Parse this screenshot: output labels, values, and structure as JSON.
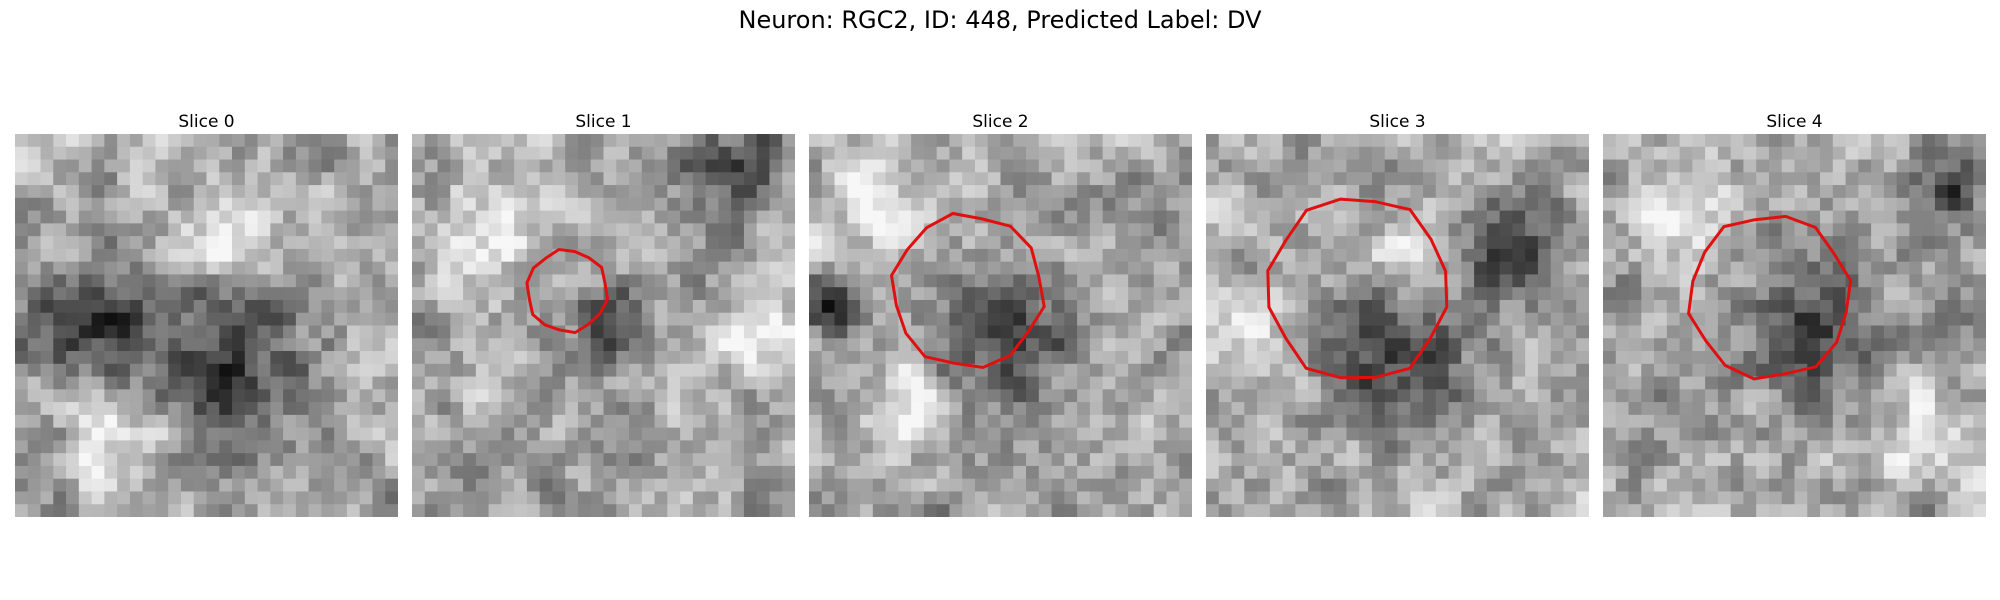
{
  "figure": {
    "title": "Neuron: RGC2, ID: 448, Predicted Label: DV"
  },
  "contour_color": "#e01010",
  "slices": [
    {
      "title": "Slice 0",
      "seed": 11,
      "dark_blobs": [
        [
          0.55,
          0.62,
          0.35
        ],
        [
          0.2,
          0.5,
          0.25
        ]
      ],
      "light_blobs": [
        [
          0.55,
          0.25,
          0.2
        ],
        [
          0.3,
          0.78,
          0.2
        ]
      ],
      "has_contour": false
    },
    {
      "title": "Slice 1",
      "seed": 23,
      "dark_blobs": [
        [
          0.52,
          0.5,
          0.14
        ],
        [
          0.85,
          0.1,
          0.2
        ]
      ],
      "light_blobs": [
        [
          0.2,
          0.25,
          0.25
        ],
        [
          0.9,
          0.5,
          0.18
        ]
      ],
      "has_contour": true
    },
    {
      "title": "Slice 2",
      "seed": 37,
      "dark_blobs": [
        [
          0.52,
          0.52,
          0.26
        ],
        [
          0.05,
          0.45,
          0.12
        ]
      ],
      "light_blobs": [
        [
          0.2,
          0.15,
          0.2
        ],
        [
          0.25,
          0.75,
          0.15
        ]
      ],
      "has_contour": true
    },
    {
      "title": "Slice 3",
      "seed": 41,
      "dark_blobs": [
        [
          0.5,
          0.58,
          0.28
        ],
        [
          0.8,
          0.3,
          0.2
        ]
      ],
      "light_blobs": [
        [
          0.5,
          0.35,
          0.1
        ],
        [
          0.1,
          0.5,
          0.15
        ]
      ],
      "has_contour": true
    },
    {
      "title": "Slice 4",
      "seed": 53,
      "dark_blobs": [
        [
          0.55,
          0.53,
          0.26
        ],
        [
          0.9,
          0.15,
          0.15
        ]
      ],
      "light_blobs": [
        [
          0.2,
          0.2,
          0.2
        ],
        [
          0.85,
          0.8,
          0.2
        ]
      ],
      "has_contour": true
    }
  ]
}
